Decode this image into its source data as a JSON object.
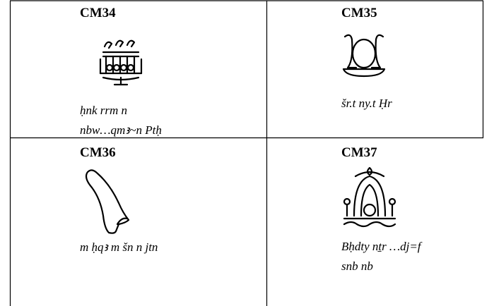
{
  "table": {
    "rows": [
      [
        {
          "code": "CM34",
          "lines": [
            "ḥnk rrm n",
            "nbw…qmꜣ~n Ptḥ"
          ]
        },
        {
          "code": "CM35",
          "lines": [
            "šr.t ny.t Ḥr"
          ]
        }
      ],
      [
        {
          "code": "CM36",
          "lines": [
            "m ḥqꜣ m šn n jtn"
          ]
        },
        {
          "code": "CM37",
          "lines": [
            "Bḥdty nṯr …dj=f",
            "snb nb"
          ]
        }
      ]
    ]
  }
}
